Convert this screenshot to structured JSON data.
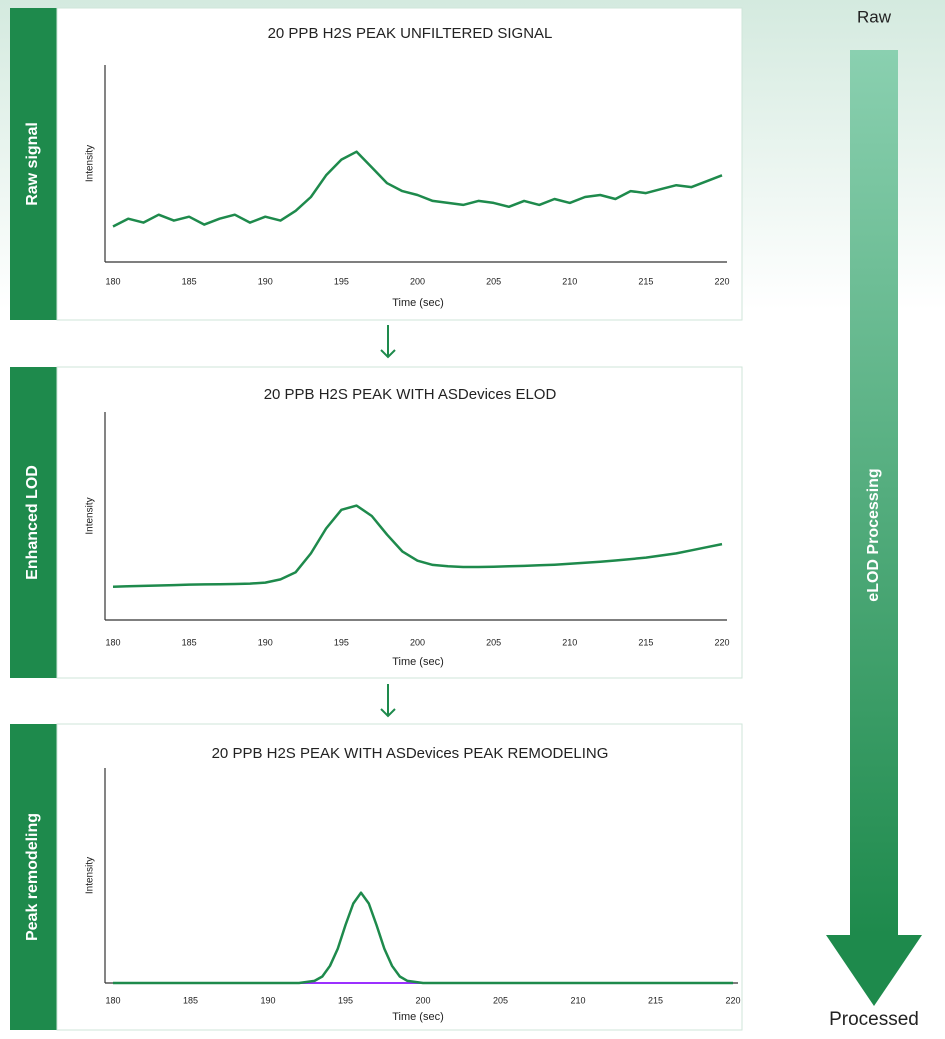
{
  "chart_data": [
    {
      "type": "line",
      "title": "20 PPB H2S PEAK UNFILTERED SIGNAL",
      "x_label": "Time (sec)",
      "y_label": "Intensity",
      "x": [
        180,
        181,
        182,
        183,
        184,
        185,
        186,
        187,
        188,
        189,
        190,
        191,
        192,
        193,
        194,
        195,
        196,
        197,
        198,
        199,
        200,
        201,
        202,
        203,
        204,
        205,
        206,
        207,
        208,
        209,
        210,
        211,
        212,
        213,
        214,
        215,
        216,
        217,
        218,
        219,
        220
      ],
      "series": [
        {
          "color": "#1e8a4c",
          "values": [
            18,
            22,
            20,
            24,
            21,
            23,
            19,
            22,
            24,
            20,
            23,
            21,
            26,
            33,
            44,
            52,
            56,
            48,
            40,
            36,
            34,
            31,
            30,
            29,
            31,
            30,
            28,
            31,
            29,
            32,
            30,
            33,
            34,
            32,
            36,
            35,
            37,
            39,
            38,
            41,
            44
          ]
        }
      ],
      "xlim": [
        180,
        220
      ],
      "xticks": [
        180,
        185,
        190,
        195,
        200,
        205,
        210,
        215,
        220
      ],
      "ylim": [
        0,
        100
      ]
    },
    {
      "type": "line",
      "title": "20 PPB H2S PEAK WITH ASDevices ELOD",
      "x_label": "Time (sec)",
      "y_label": "Intensity",
      "x": [
        180,
        181,
        182,
        183,
        184,
        185,
        186,
        187,
        188,
        189,
        190,
        191,
        192,
        193,
        194,
        195,
        196,
        197,
        198,
        199,
        200,
        201,
        202,
        203,
        204,
        205,
        206,
        207,
        208,
        209,
        210,
        211,
        212,
        213,
        214,
        215,
        216,
        217,
        218,
        219,
        220
      ],
      "series": [
        {
          "color": "#1e8a4c",
          "values": [
            16,
            16.2,
            16.4,
            16.6,
            16.8,
            17,
            17.1,
            17.2,
            17.3,
            17.5,
            18,
            19.5,
            23,
            32,
            44,
            53,
            55,
            50,
            41,
            33,
            28.5,
            26.5,
            25.8,
            25.5,
            25.5,
            25.6,
            25.8,
            26,
            26.3,
            26.6,
            27,
            27.5,
            28,
            28.6,
            29.3,
            30,
            31,
            32,
            33.5,
            35,
            36.5
          ]
        }
      ],
      "xlim": [
        180,
        220
      ],
      "xticks": [
        180,
        185,
        190,
        195,
        200,
        205,
        210,
        215,
        220
      ],
      "ylim": [
        0,
        100
      ]
    },
    {
      "type": "line",
      "title": "20 PPB H2S PEAK WITH ASDevices PEAK REMODELING",
      "x_label": "Time (sec)",
      "y_label": "Intensity",
      "x": [
        180,
        185,
        190,
        192,
        193,
        193.5,
        194,
        194.5,
        195,
        195.5,
        196,
        196.5,
        197,
        197.5,
        198,
        198.5,
        199,
        200,
        205,
        210,
        215,
        220
      ],
      "series": [
        {
          "color": "#9b30ff",
          "values": [
            0,
            0,
            0,
            0,
            0,
            0,
            0,
            0,
            0,
            0,
            0,
            0,
            0,
            0,
            0,
            0,
            0,
            0,
            0,
            0,
            0,
            0
          ]
        },
        {
          "color": "#1e8a4c",
          "values": [
            0,
            0,
            0,
            0,
            1,
            3,
            8,
            16,
            27,
            37,
            42,
            37,
            27,
            16,
            8,
            3,
            1,
            0,
            0,
            0,
            0,
            0
          ]
        }
      ],
      "xlim": [
        180,
        220
      ],
      "xticks": [
        180,
        185,
        190,
        195,
        200,
        205,
        210,
        215,
        220
      ],
      "ylim": [
        0,
        100
      ]
    }
  ],
  "section_labels": [
    "Raw signal",
    "Enhanced LOD",
    "Peak remodeling"
  ],
  "flow": {
    "start": "Raw",
    "label": "eLOD Processing",
    "end": "Processed"
  }
}
